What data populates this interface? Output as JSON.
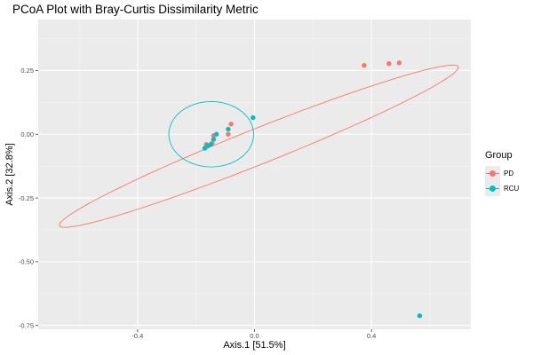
{
  "title": "PCoA Plot with Bray-Curtis Dissimilarity Metric",
  "chart_data": {
    "type": "scatter",
    "title": "PCoA Plot with Bray-Curtis Dissimilarity Metric",
    "xlabel": "Axis.1   [51.5%]",
    "ylabel": "Axis.2   [32.8%]",
    "xlim": [
      -0.74,
      0.74
    ],
    "ylim": [
      -0.765,
      0.45
    ],
    "x_ticks": [
      -0.4,
      0.0,
      0.4
    ],
    "x_tick_labels": [
      "-0.4",
      "0.0",
      "0.4"
    ],
    "y_ticks": [
      -0.75,
      -0.5,
      -0.25,
      0.0,
      0.25
    ],
    "y_tick_labels": [
      "-0.75",
      "-0.50",
      "-0.25",
      "0.00",
      "0.25"
    ],
    "grid": true,
    "legend_position": "right",
    "legend_title": "Group",
    "series": [
      {
        "name": "PD",
        "color": "#F8766D",
        "points": [
          [
            0.375,
            0.27
          ],
          [
            0.46,
            0.277
          ],
          [
            0.495,
            0.28
          ],
          [
            -0.08,
            0.04
          ],
          [
            -0.09,
            0.0
          ],
          [
            -0.145,
            -0.035
          ],
          [
            -0.165,
            -0.04
          ],
          [
            -0.14,
            -0.005
          ]
        ],
        "ellipse": {
          "center": [
            0.015,
            -0.047
          ],
          "semi_major": 0.75,
          "semi_minor": 0.068,
          "angle_deg": 24.6
        }
      },
      {
        "name": "RCU",
        "color": "#00BFC4",
        "points": [
          [
            -0.005,
            0.065
          ],
          [
            -0.09,
            0.02
          ],
          [
            -0.13,
            0.0
          ],
          [
            -0.14,
            -0.02
          ],
          [
            -0.15,
            -0.04
          ],
          [
            -0.16,
            -0.045
          ],
          [
            -0.17,
            -0.055
          ],
          [
            0.565,
            -0.712
          ]
        ],
        "ellipse": {
          "center": [
            -0.148,
            0.0
          ],
          "semi_major": 0.145,
          "semi_minor": 0.128,
          "angle_deg": 0
        }
      }
    ]
  }
}
